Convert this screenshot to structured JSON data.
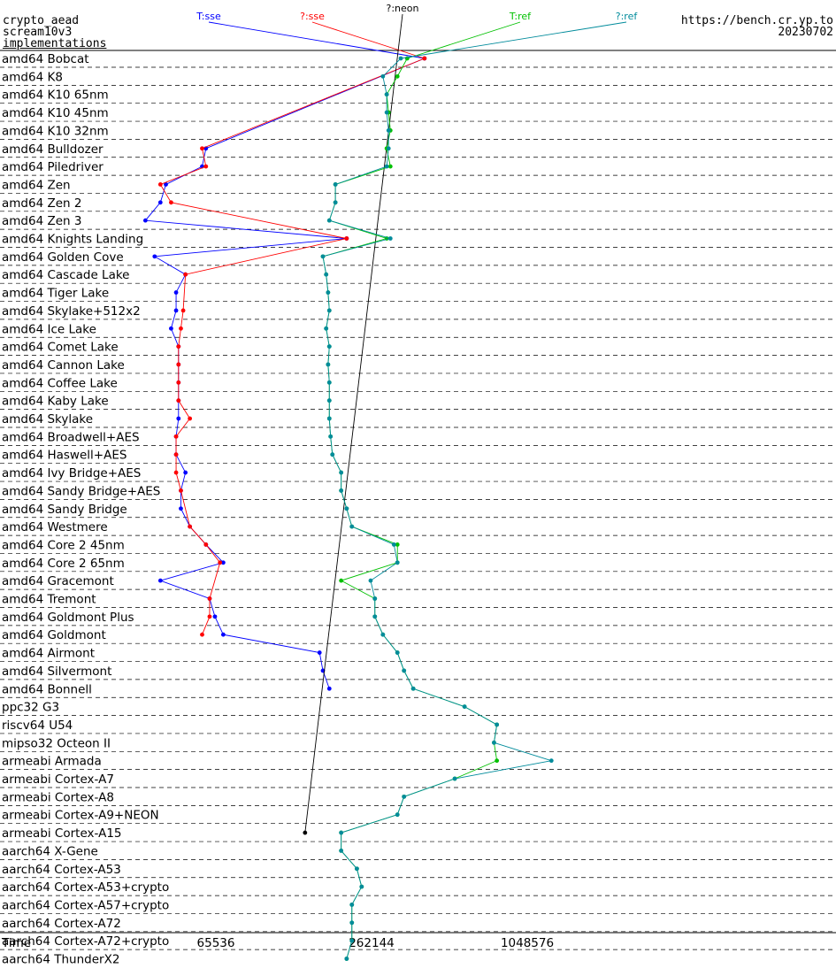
{
  "header": {
    "primitive": "crypto_aead",
    "algorithm": "scream10v3",
    "section": "implementations",
    "url": "https://bench.cr.yp.to",
    "date": "20230702"
  },
  "chart_data": {
    "type": "scatter",
    "xlabel": "Time",
    "x_scale": "log",
    "x_ticks": [
      65536,
      262144,
      1048576
    ],
    "series": [
      {
        "name": "T:sse",
        "color": "#0000ff"
      },
      {
        "name": "?:sse",
        "color": "#ff0000"
      },
      {
        "name": "?:neon",
        "color": "#000000"
      },
      {
        "name": "T:ref",
        "color": "#00c000"
      },
      {
        "name": "?:ref",
        "color": "#008b9b"
      }
    ],
    "rows": [
      {
        "label": "amd64 Bobcat",
        "sse_T": 420000,
        "sse_u": 420000,
        "ref_T": 360000,
        "ref_u": 340000
      },
      {
        "label": "amd64 K8",
        "ref_T": 330000,
        "ref_u": 290000
      },
      {
        "label": "amd64 K10 65nm",
        "ref_T": 300000,
        "ref_u": 300000
      },
      {
        "label": "amd64 K10 45nm",
        "ref_T": 305000,
        "ref_u": 300000
      },
      {
        "label": "amd64 K10 32nm",
        "ref_T": 310000,
        "ref_u": 305000
      },
      {
        "label": "amd64 Bulldozer",
        "sse_T": 60000,
        "sse_u": 58000,
        "ref_T": 300000,
        "ref_u": 305000
      },
      {
        "label": "amd64 Piledriver",
        "sse_T": 58000,
        "sse_u": 60000,
        "ref_T": 310000,
        "ref_u": 300000
      },
      {
        "label": "amd64 Zen",
        "sse_T": 42000,
        "sse_u": 40000,
        "ref_T": 190000,
        "ref_u": 190000
      },
      {
        "label": "amd64 Zen 2",
        "sse_T": 40000,
        "sse_u": 44000,
        "ref_T": 190000,
        "ref_u": 190000
      },
      {
        "label": "amd64 Zen 3",
        "sse_T": 35000,
        "ref_T": 180000,
        "ref_u": 180000
      },
      {
        "label": "amd64 Knights Landing",
        "sse_T": 210000,
        "sse_u": 210000,
        "ref_T": 300000,
        "ref_u": 310000
      },
      {
        "label": "amd64 Golden Cove",
        "sse_T": 38000,
        "ref_T": 170000,
        "ref_u": 170000
      },
      {
        "label": "amd64 Cascade Lake",
        "sse_T": 50000,
        "sse_u": 50000,
        "ref_T": 175000,
        "ref_u": 175000
      },
      {
        "label": "amd64 Tiger Lake",
        "sse_T": 46000,
        "ref_T": 178000,
        "ref_u": 178000
      },
      {
        "label": "amd64 Skylake+512x2",
        "sse_T": 46000,
        "sse_u": 49000,
        "ref_T": 180000,
        "ref_u": 180000
      },
      {
        "label": "amd64 Ice Lake",
        "sse_T": 44000,
        "sse_u": 48000,
        "ref_T": 175000,
        "ref_u": 175000
      },
      {
        "label": "amd64 Comet Lake",
        "sse_T": 47000,
        "sse_u": 47000,
        "ref_T": 180000,
        "ref_u": 180000
      },
      {
        "label": "amd64 Cannon Lake",
        "sse_T": 47000,
        "sse_u": 47000,
        "ref_T": 178000,
        "ref_u": 178000
      },
      {
        "label": "amd64 Coffee Lake",
        "sse_T": 47000,
        "sse_u": 47000,
        "ref_T": 180000,
        "ref_u": 180000
      },
      {
        "label": "amd64 Kaby Lake",
        "sse_T": 47000,
        "sse_u": 47000,
        "ref_T": 180000,
        "ref_u": 180000
      },
      {
        "label": "amd64 Skylake",
        "sse_T": 47000,
        "sse_u": 52000,
        "ref_T": 180000,
        "ref_u": 180000
      },
      {
        "label": "amd64 Broadwell+AES",
        "sse_T": 46000,
        "sse_u": 46000,
        "ref_T": 182000,
        "ref_u": 182000
      },
      {
        "label": "amd64 Haswell+AES",
        "sse_T": 46000,
        "sse_u": 46000,
        "ref_T": 185000,
        "ref_u": 185000
      },
      {
        "label": "amd64 Ivy Bridge+AES",
        "sse_T": 50000,
        "sse_u": 46000,
        "ref_T": 200000,
        "ref_u": 200000
      },
      {
        "label": "amd64 Sandy Bridge+AES",
        "sse_T": 48000,
        "sse_u": 48000,
        "ref_T": 200000,
        "ref_u": 200000
      },
      {
        "label": "amd64 Sandy Bridge",
        "sse_T": 48000,
        "ref_T": 210000,
        "ref_u": 210000
      },
      {
        "label": "amd64 Westmere",
        "sse_T": 52000,
        "sse_u": 52000,
        "ref_T": 220000,
        "ref_u": 220000
      },
      {
        "label": "amd64 Core 2 45nm",
        "sse_T": 60000,
        "sse_u": 60000,
        "ref_T": 330000,
        "ref_u": 320000
      },
      {
        "label": "amd64 Core 2 65nm",
        "sse_T": 70000,
        "sse_u": 68000,
        "ref_T": 330000,
        "ref_u": 330000
      },
      {
        "label": "amd64 Gracemont",
        "sse_T": 40000,
        "ref_T": 200000,
        "ref_u": 260000
      },
      {
        "label": "amd64 Tremont",
        "sse_T": 62000,
        "sse_u": 62000,
        "ref_T": 270000,
        "ref_u": 270000
      },
      {
        "label": "amd64 Goldmont Plus",
        "sse_T": 65000,
        "sse_u": 62000,
        "ref_T": 270000,
        "ref_u": 270000
      },
      {
        "label": "amd64 Goldmont",
        "sse_T": 70000,
        "sse_u": 58000,
        "ref_T": 290000,
        "ref_u": 290000
      },
      {
        "label": "amd64 Airmont",
        "sse_T": 165000,
        "ref_T": 330000,
        "ref_u": 330000
      },
      {
        "label": "amd64 Silvermont",
        "sse_T": 170000,
        "ref_T": 350000,
        "ref_u": 350000
      },
      {
        "label": "amd64 Bonnell",
        "sse_T": 180000,
        "ref_T": 380000,
        "ref_u": 380000
      },
      {
        "label": "ppc32 G3",
        "ref_T": 600000,
        "ref_u": 600000
      },
      {
        "label": "riscv64 U54",
        "ref_T": 800000,
        "ref_u": 800000
      },
      {
        "label": "mipso32 Octeon II",
        "ref_T": 780000,
        "ref_u": 780000
      },
      {
        "label": "armeabi Armada",
        "ref_T": 800000,
        "ref_u": 1300000
      },
      {
        "label": "armeabi Cortex-A7",
        "ref_T": 550000,
        "ref_u": 550000
      },
      {
        "label": "armeabi Cortex-A8",
        "ref_T": 350000,
        "ref_u": 350000
      },
      {
        "label": "armeabi Cortex-A9+NEON",
        "ref_T": 330000,
        "ref_u": 330000
      },
      {
        "label": "armeabi Cortex-A15",
        "neon_u": 145000,
        "ref_T": 200000,
        "ref_u": 200000
      },
      {
        "label": "aarch64 X-Gene",
        "ref_T": 200000,
        "ref_u": 200000
      },
      {
        "label": "aarch64 Cortex-A53",
        "ref_T": 230000,
        "ref_u": 230000
      },
      {
        "label": "aarch64 Cortex-A53+crypto",
        "ref_T": 240000,
        "ref_u": 240000
      },
      {
        "label": "aarch64 Cortex-A57+crypto",
        "ref_T": 220000,
        "ref_u": 220000
      },
      {
        "label": "aarch64 Cortex-A72",
        "ref_T": 220000,
        "ref_u": 220000
      },
      {
        "label": "aarch64 Cortex-A72+crypto",
        "ref_T": 220000,
        "ref_u": 220000
      },
      {
        "label": "aarch64 ThunderX2",
        "ref_T": 210000,
        "ref_u": 210000
      }
    ]
  }
}
